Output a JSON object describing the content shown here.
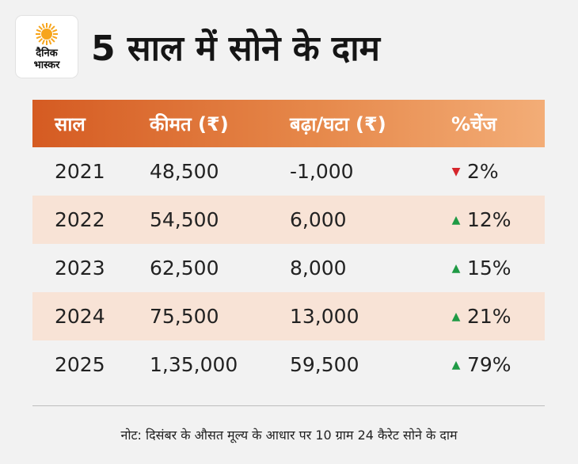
{
  "brand": {
    "logo_line1": "दैनिक",
    "logo_line2": "भास्कर",
    "sun_color": "#f7a51c"
  },
  "title": "5 साल में सोने के दाम",
  "table": {
    "headers": [
      "साल",
      "कीमत (₹)",
      "बढ़ा/घटा (₹)",
      "%चेंज"
    ],
    "rows": [
      {
        "year": "2021",
        "price": "48,500",
        "change": "-1,000",
        "direction": "down",
        "percent": "2%"
      },
      {
        "year": "2022",
        "price": "54,500",
        "change": "6,000",
        "direction": "up",
        "percent": "12%"
      },
      {
        "year": "2023",
        "price": "62,500",
        "change": "8,000",
        "direction": "up",
        "percent": "15%"
      },
      {
        "year": "2024",
        "price": "75,500",
        "change": "13,000",
        "direction": "up",
        "percent": "21%"
      },
      {
        "year": "2025",
        "price": "1,35,000",
        "change": "59,500",
        "direction": "up",
        "percent": "79%"
      }
    ]
  },
  "note": "नोट: दिसंबर के औसत मूल्य के आधार पर 10 ग्राम 24 कैरेट सोने के दाम",
  "colors": {
    "header_start": "#d55b22",
    "header_end": "#f3ad77",
    "row_shade": "#f8e3d6",
    "up": "#1f9a45",
    "down": "#d6262c"
  }
}
